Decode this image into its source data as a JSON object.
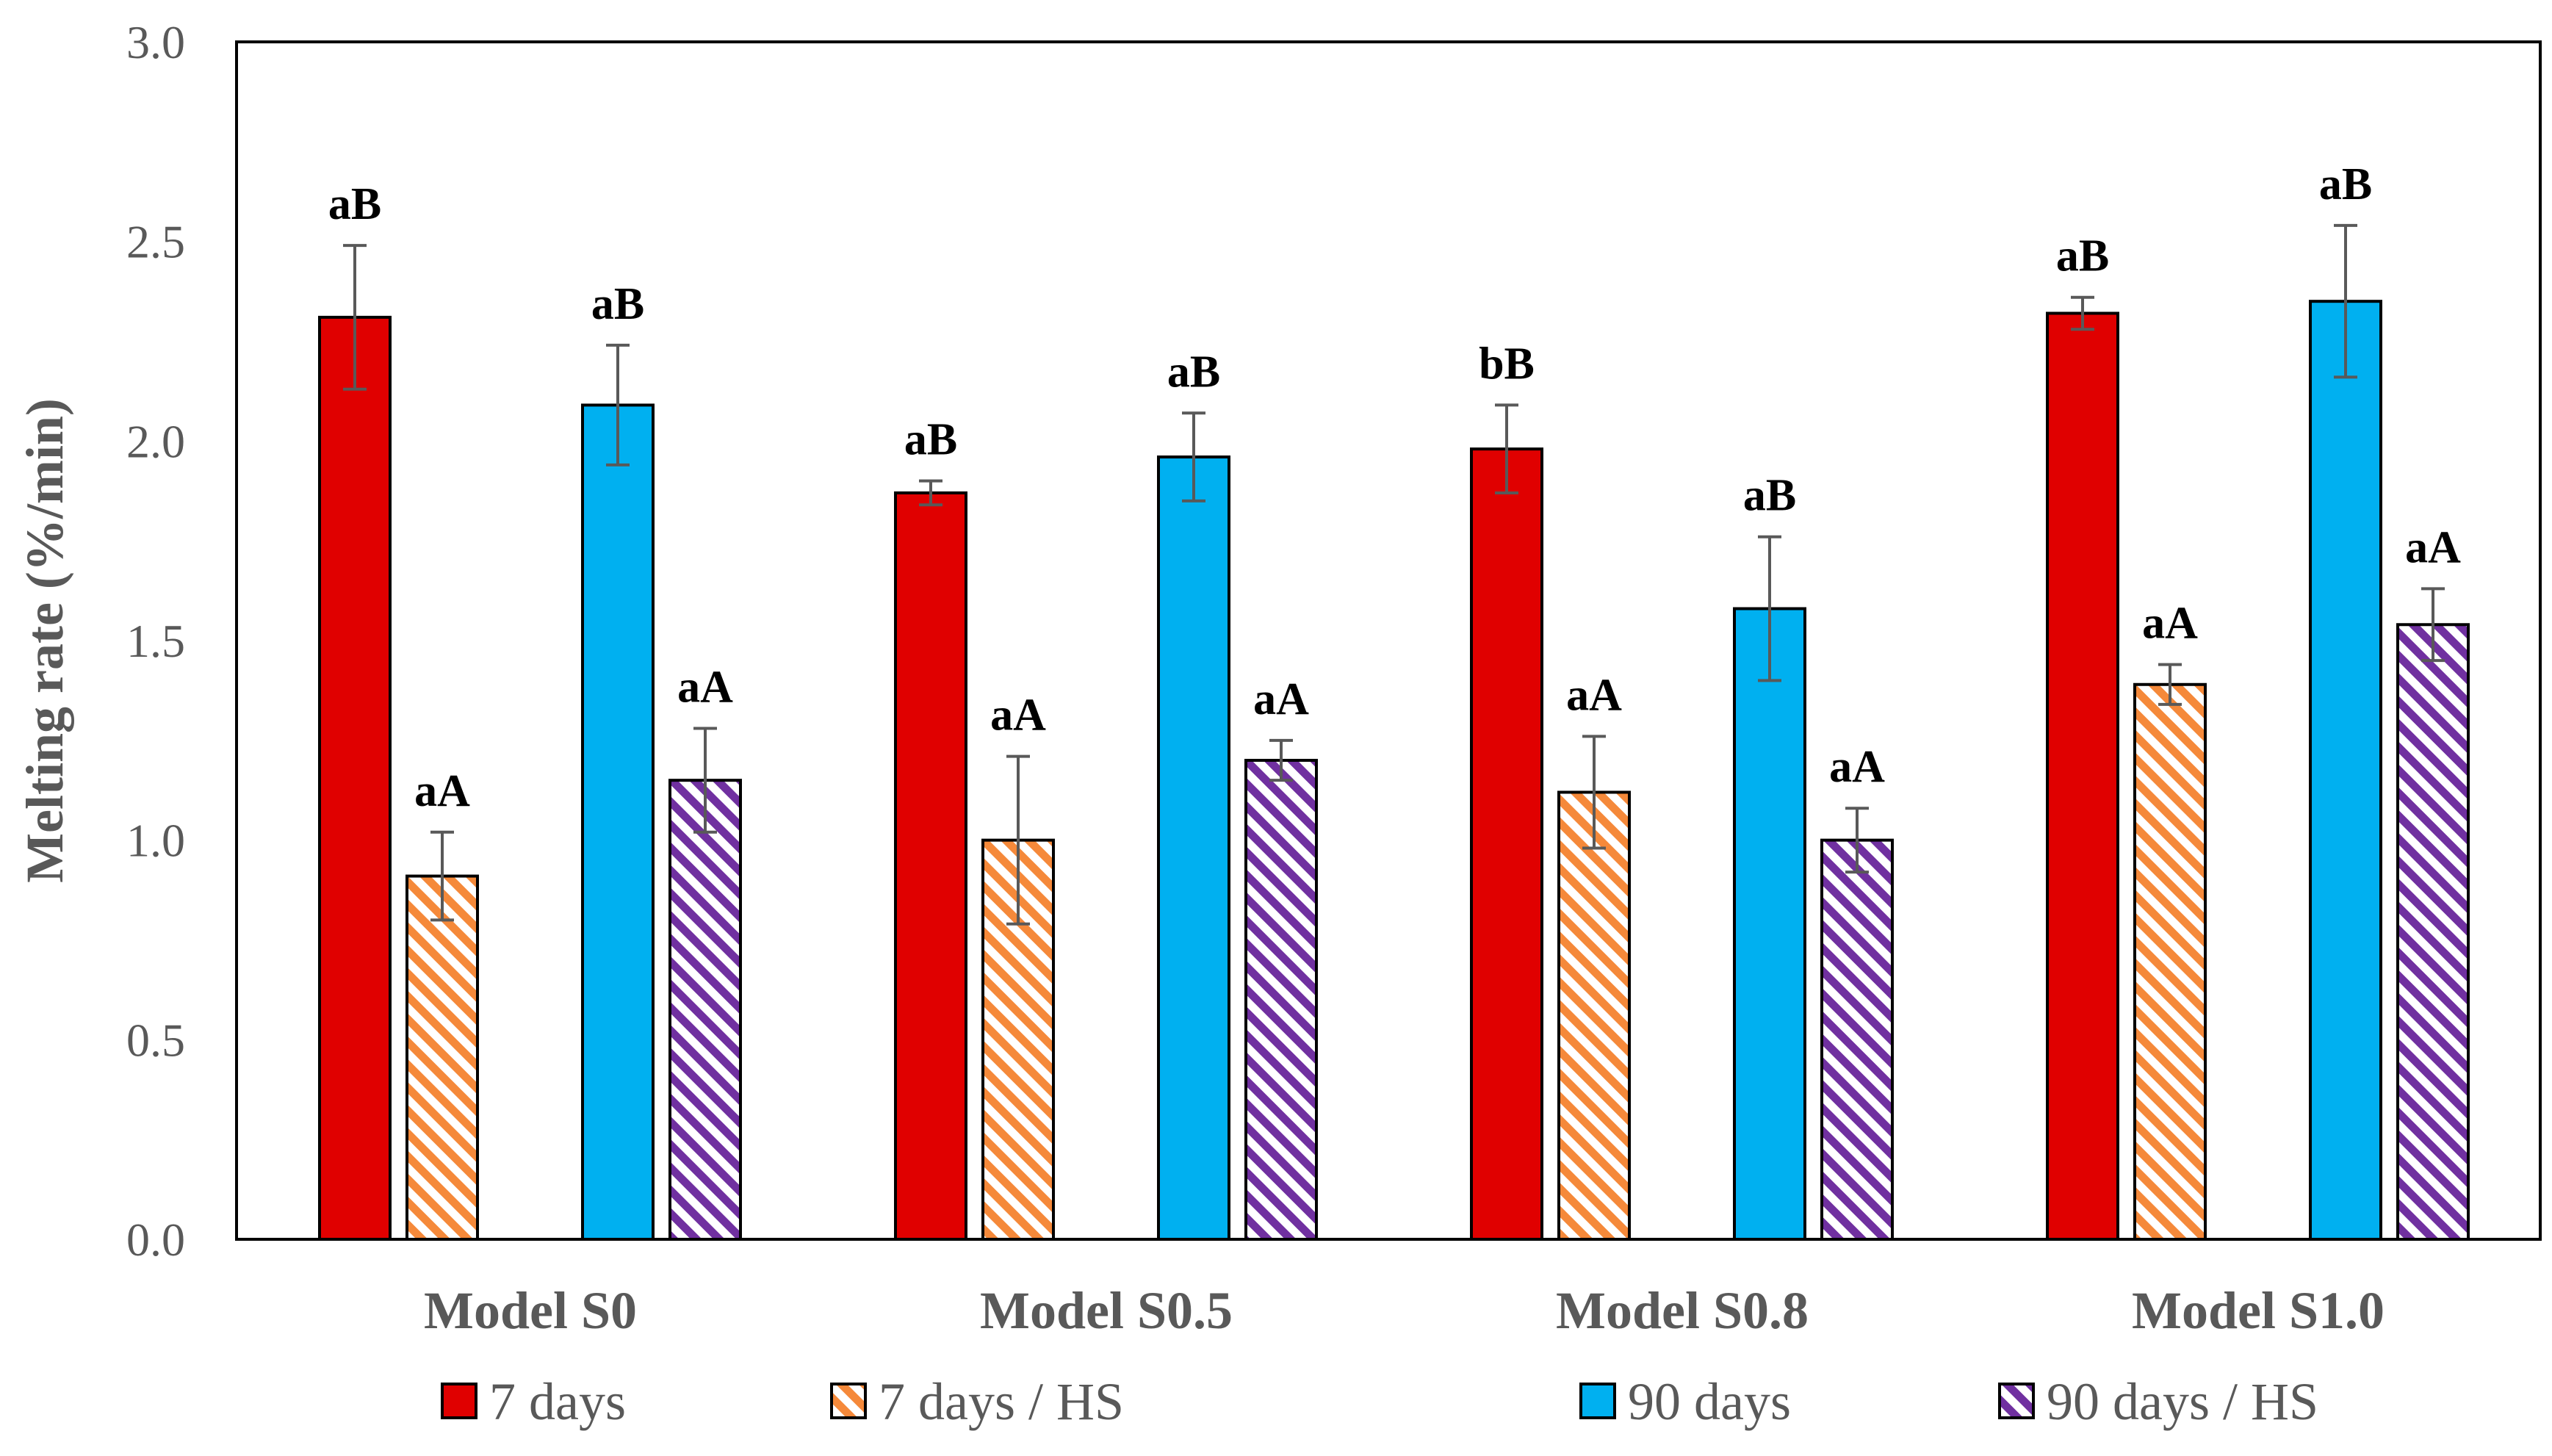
{
  "chart_data": {
    "type": "bar",
    "title": "",
    "xlabel": "",
    "ylabel": "Melting rate (%/min)",
    "ylim": [
      0,
      3.0
    ],
    "yticks": [
      "0.0",
      "0.5",
      "1.0",
      "1.5",
      "2.0",
      "2.5",
      "3.0"
    ],
    "categories": [
      "Model S0",
      "Model S0.5",
      "Model S0.8",
      "Model S1.0"
    ],
    "series": [
      {
        "name": "7 days",
        "color": "#e00000",
        "pattern": "solid",
        "values": [
          2.31,
          1.87,
          1.98,
          2.32
        ],
        "errors": [
          0.18,
          0.03,
          0.11,
          0.04
        ],
        "labels": [
          "aB",
          "aB",
          "bB",
          "aB"
        ]
      },
      {
        "name": "7 days / HS",
        "color": "#f5893a",
        "pattern": "hatch",
        "values": [
          0.91,
          1.0,
          1.12,
          1.39
        ],
        "errors": [
          0.11,
          0.21,
          0.14,
          0.05
        ],
        "labels": [
          "aA",
          "aA",
          "aA",
          "aA"
        ]
      },
      {
        "name": "90 days",
        "color": "#00b0f0",
        "pattern": "solid",
        "values": [
          2.09,
          1.96,
          1.58,
          2.35
        ],
        "errors": [
          0.15,
          0.11,
          0.18,
          0.19
        ],
        "labels": [
          "aB",
          "aB",
          "aB",
          "aB"
        ]
      },
      {
        "name": "90 days / HS",
        "color": "#7030a0",
        "pattern": "hatch",
        "values": [
          1.15,
          1.2,
          1.0,
          1.54
        ],
        "errors": [
          0.13,
          0.05,
          0.08,
          0.09
        ],
        "labels": [
          "aA",
          "aA",
          "aA",
          "aA"
        ]
      }
    ],
    "grid": false,
    "legend_position": "bottom"
  }
}
